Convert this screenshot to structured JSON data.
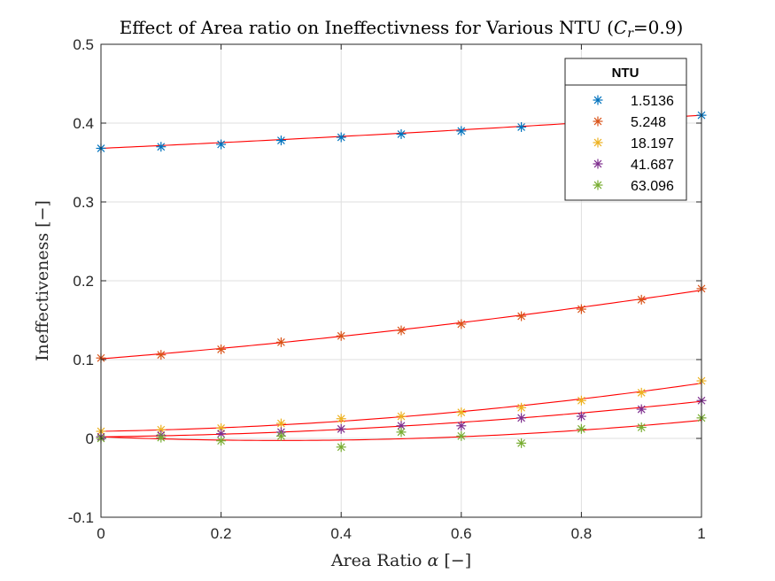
{
  "chart_data": {
    "type": "scatter",
    "title": "Effect of Area ratio on Ineffectivness for Various NTU (",
    "title_math": "C",
    "title_math_sub": "r",
    "title_tail": "=0.9)",
    "xlabel": "Area Ratio ",
    "xlabel_math": "α",
    "xlabel_tail": " [−]",
    "ylabel": "Ineffectiveness [−]",
    "xlim": [
      0,
      1
    ],
    "ylim": [
      -0.1,
      0.5
    ],
    "xticks": [
      "0",
      "0.2",
      "0.4",
      "0.6",
      "0.8",
      "1"
    ],
    "yticks": [
      "-0.1",
      "0",
      "0.1",
      "0.2",
      "0.3",
      "0.4",
      "0.5"
    ],
    "grid": true,
    "legend": {
      "title": "NTU",
      "placement": "top-right"
    },
    "fit_color": "#ff0000",
    "x": [
      0,
      0.1,
      0.2,
      0.3,
      0.4,
      0.5,
      0.6,
      0.7,
      0.8,
      0.9,
      1.0
    ],
    "series": [
      {
        "name": "1.5136",
        "color": "#0072bd",
        "values": [
          0.368,
          0.37,
          0.373,
          0.378,
          0.382,
          0.386,
          0.39,
          0.395,
          0.4,
          0.405,
          0.41
        ],
        "fit": [
          0.368,
          0.0347,
          0.0073
        ]
      },
      {
        "name": "5.248",
        "color": "#d95319",
        "values": [
          0.102,
          0.106,
          0.113,
          0.122,
          0.13,
          0.137,
          0.145,
          0.155,
          0.164,
          0.176,
          0.19
        ],
        "fit": [
          0.101,
          0.0607,
          0.0263
        ]
      },
      {
        "name": "18.197",
        "color": "#edb120",
        "values": [
          0.009,
          0.011,
          0.013,
          0.019,
          0.025,
          0.028,
          0.033,
          0.039,
          0.048,
          0.058,
          0.073
        ],
        "fit": [
          0.009,
          0.0127,
          0.0483
        ]
      },
      {
        "name": "41.687",
        "color": "#7e2f8e",
        "values": [
          0.002,
          0.004,
          0.006,
          0.008,
          0.012,
          0.016,
          0.016,
          0.026,
          0.028,
          0.037,
          0.048
        ],
        "fit": [
          0.002,
          0.0093,
          0.0357
        ]
      },
      {
        "name": "63.096",
        "color": "#77ac30",
        "values": [
          0.0,
          0.001,
          -0.003,
          0.003,
          -0.011,
          0.008,
          0.003,
          -0.006,
          0.012,
          0.014,
          0.026
        ],
        "fit": [
          0.002,
          -0.031,
          0.052
        ]
      }
    ]
  }
}
